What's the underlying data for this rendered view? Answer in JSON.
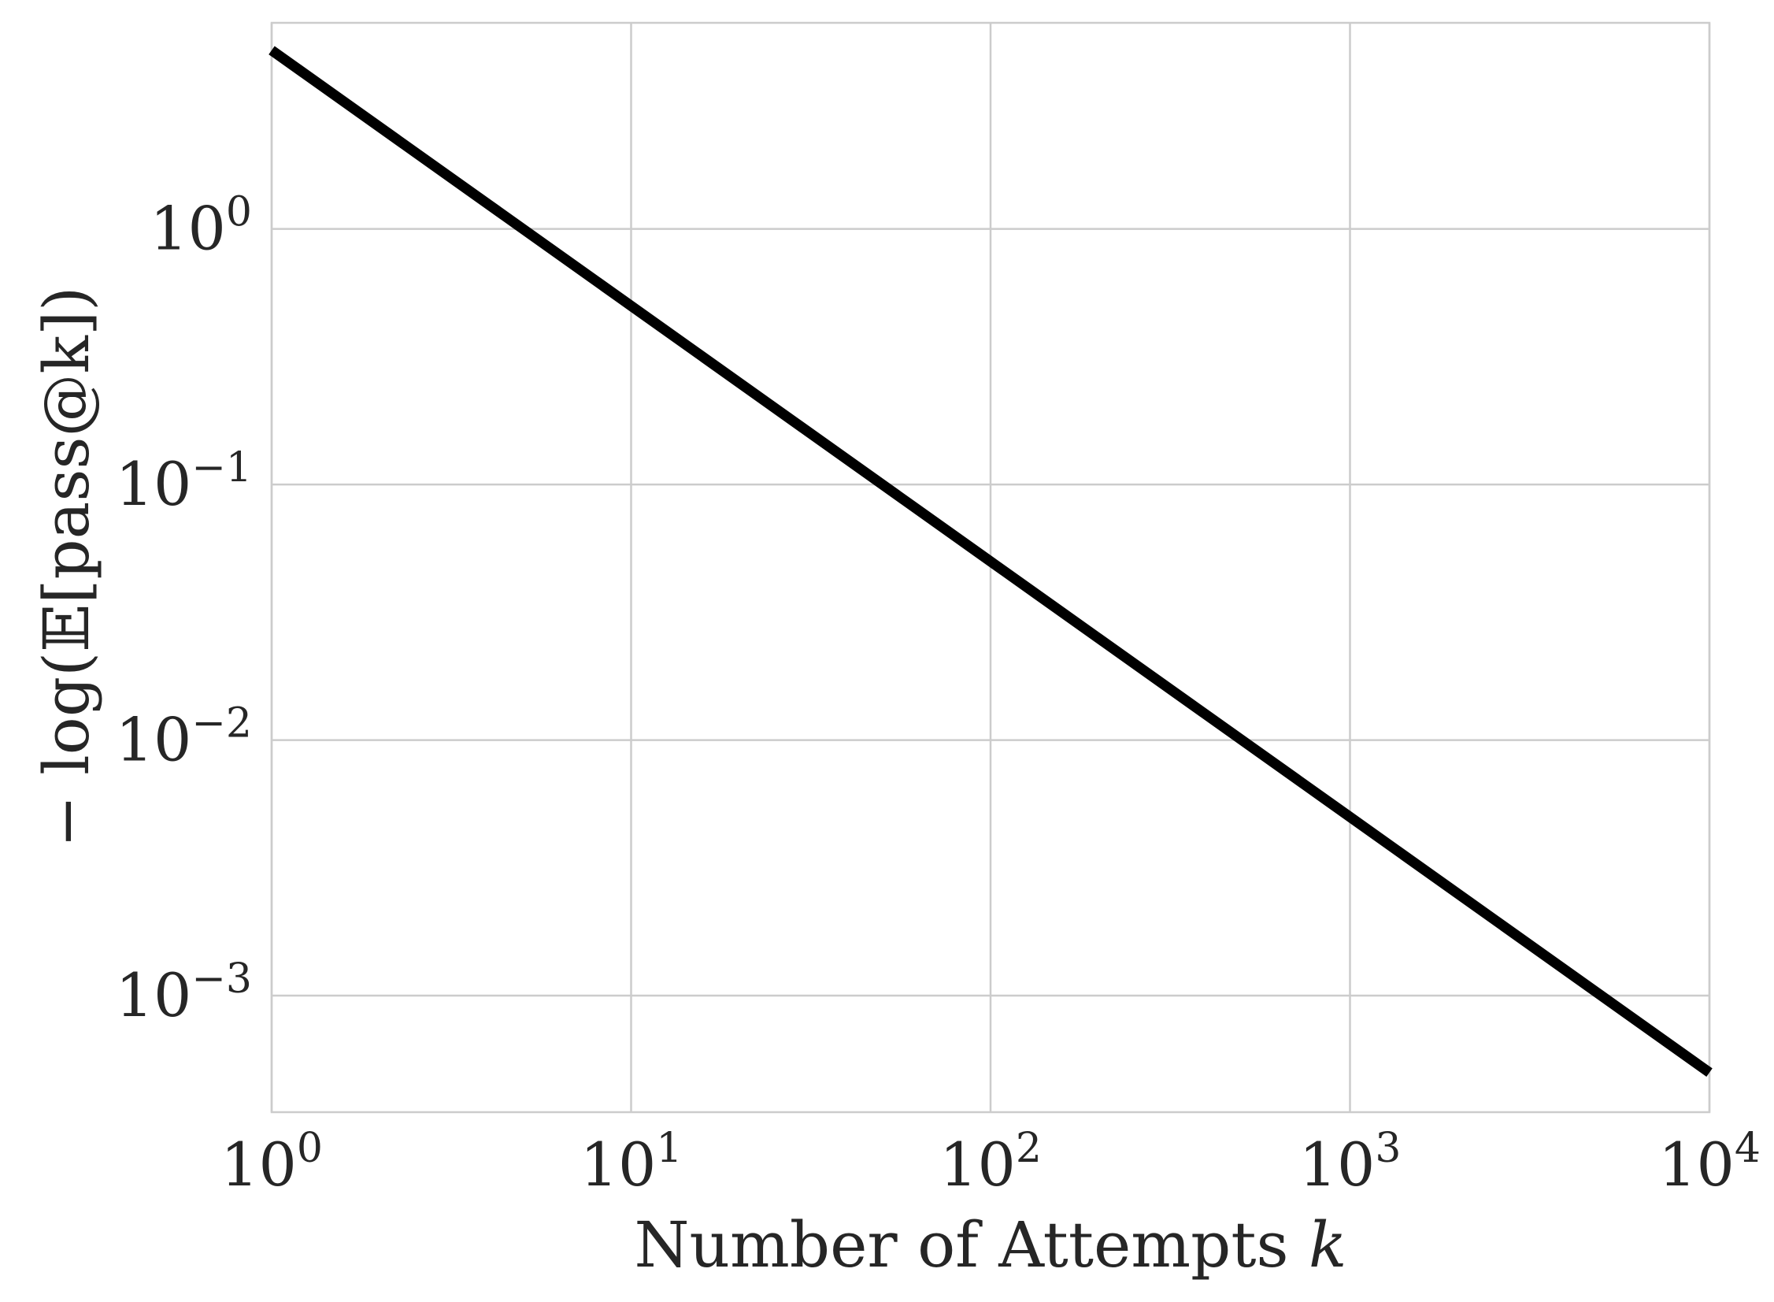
{
  "chart_data": {
    "type": "line",
    "xlabel": "Number of Attempts",
    "xlabel_var": "k",
    "ylabel": "− log(𝔼[pass@k])",
    "x_scale": "log",
    "y_scale": "log",
    "xlim": [
      1,
      10000
    ],
    "ylim": [
      0.00035,
      6.4
    ],
    "x_ticks": [
      {
        "value": 1,
        "base": "10",
        "exp": "0"
      },
      {
        "value": 10,
        "base": "10",
        "exp": "1"
      },
      {
        "value": 100,
        "base": "10",
        "exp": "2"
      },
      {
        "value": 1000,
        "base": "10",
        "exp": "3"
      },
      {
        "value": 10000,
        "base": "10",
        "exp": "4"
      }
    ],
    "y_ticks": [
      {
        "value": 0.001,
        "base": "10",
        "exp": "−3"
      },
      {
        "value": 0.01,
        "base": "10",
        "exp": "−2"
      },
      {
        "value": 0.1,
        "base": "10",
        "exp": "−1"
      },
      {
        "value": 1,
        "base": "10",
        "exp": "0"
      }
    ],
    "grid": true,
    "series": [
      {
        "color": "#000000",
        "x": [
          1,
          10,
          100,
          1000,
          10000
        ],
        "y": [
          5.0,
          0.5,
          0.05,
          0.005,
          0.0005
        ]
      }
    ]
  }
}
